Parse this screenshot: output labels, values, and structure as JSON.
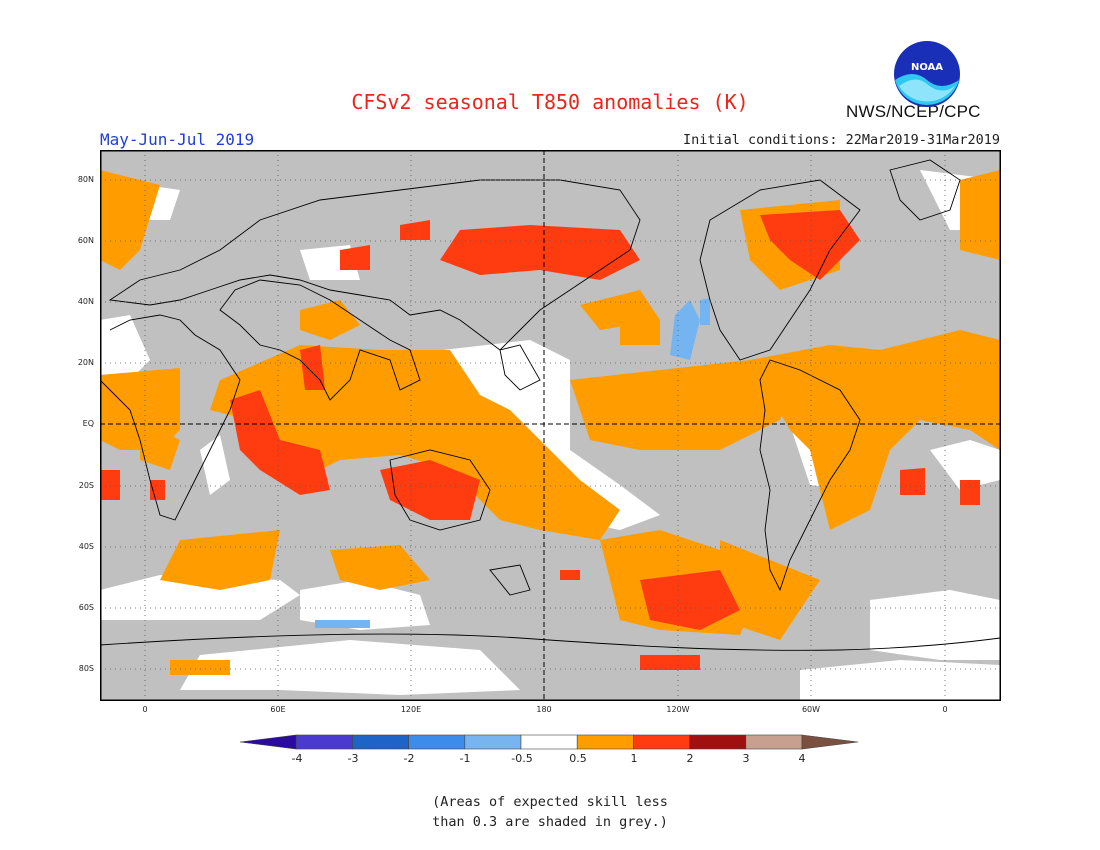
{
  "header": {
    "title": "CFSv2 seasonal T850 anomalies (K)",
    "season": "May-Jun-Jul 2019",
    "initial_conditions": "Initial conditions: 22Mar2019-31Mar2019",
    "agency": "NWS/NCEP/CPC",
    "logo_text": "NOAA"
  },
  "map": {
    "lat_labels": [
      "80N",
      "60N",
      "40N",
      "20N",
      "EQ",
      "20S",
      "40S",
      "60S",
      "80S"
    ],
    "lon_labels": [
      "0",
      "60E",
      "120E",
      "180",
      "120W",
      "60W",
      "0"
    ],
    "colors": {
      "grey_low_skill": "#c0c0c0",
      "neutral": "#ffffff",
      "warm_0_5_1": "#ff9c00",
      "warm_1_2": "#ff3c10",
      "cool_neg": "#74b4f0"
    }
  },
  "legend": {
    "labels": [
      "-4",
      "-3",
      "-2",
      "-1",
      "-0.5",
      "0.5",
      "1",
      "2",
      "3",
      "4"
    ],
    "colors": [
      "#2a0aa0",
      "#4a3ad0",
      "#1e64c8",
      "#3c8cec",
      "#78b4f0",
      "#ffffff",
      "#ff9c00",
      "#ff3c10",
      "#a01010",
      "#c8a090",
      "#7a5040"
    ]
  },
  "note": {
    "line1": "(Areas of expected skill less",
    "line2": "than 0.3 are shaded in grey.)"
  }
}
